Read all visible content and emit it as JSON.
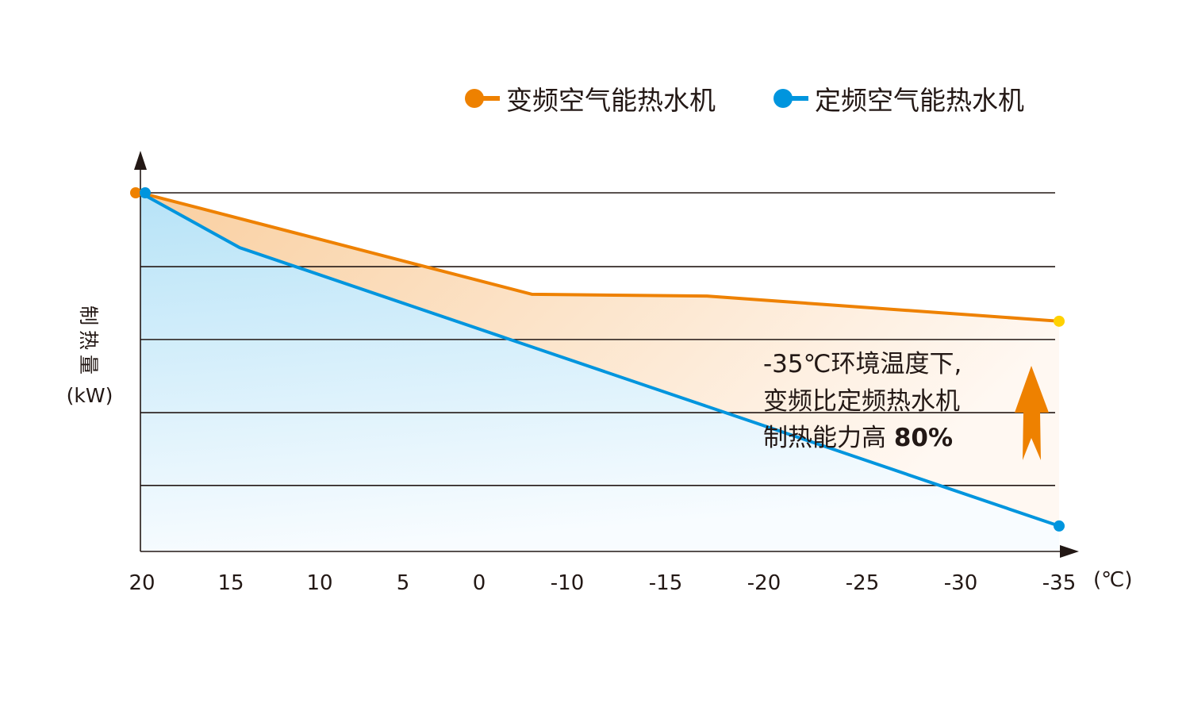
{
  "chart_data": {
    "type": "area",
    "title": "",
    "xlabel": "",
    "x_unit": "(℃)",
    "ylabel_chars": "制热量",
    "ylabel_unit": "(kW)",
    "x_ticks": [
      "20",
      "15",
      "10",
      "5",
      "0",
      "-10",
      "-15",
      "-20",
      "-25",
      "-30",
      "-35"
    ],
    "ylim": [
      0,
      100
    ],
    "y_scale": "relative, no tick labels",
    "gridlines": [
      18.4,
      38.7,
      59.1,
      79.4,
      100
    ],
    "grid": true,
    "legend_position": "top-right",
    "series": [
      {
        "name": "变频空气能热水机",
        "color": "#EE8100",
        "points": [
          [
            20,
            100
          ],
          [
            -6,
            71.7
          ],
          [
            -17.1,
            71.2
          ],
          [
            -35,
            64.2
          ]
        ]
      },
      {
        "name": "定频空气能热水机",
        "color": "#0095DE",
        "points": [
          [
            20,
            100
          ],
          [
            14.5,
            84.7
          ],
          [
            -35,
            7.1
          ]
        ]
      }
    ],
    "annotation": {
      "line1": "-35℃环境温度下,",
      "line2": "变频比定频热水机",
      "line3_prefix": "制热能力高 ",
      "line3_value": "80%"
    },
    "colors": {
      "orange": "#EE8100",
      "blue": "#0095DE",
      "endpoint_yellow": "#FFD100",
      "axis": "#231815"
    }
  }
}
